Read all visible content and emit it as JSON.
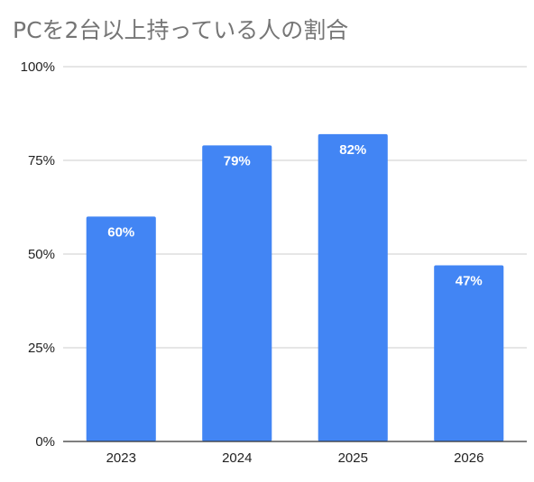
{
  "chart_data": {
    "type": "bar",
    "title": "PCを2台以上持っている人の割合",
    "categories": [
      "2023",
      "2024",
      "2025",
      "2026"
    ],
    "values": [
      60,
      79,
      82,
      47
    ],
    "data_labels": [
      "60%",
      "79%",
      "82%",
      "47%"
    ],
    "ylim": [
      0,
      100
    ],
    "yticks": [
      0,
      25,
      50,
      75,
      100
    ],
    "ytick_labels": [
      "0%",
      "25%",
      "50%",
      "75%",
      "100%"
    ],
    "grid": true,
    "legend": "none",
    "bar_color": "#4285f4",
    "grid_color": "#cccccc",
    "axis_color": "#333333"
  }
}
